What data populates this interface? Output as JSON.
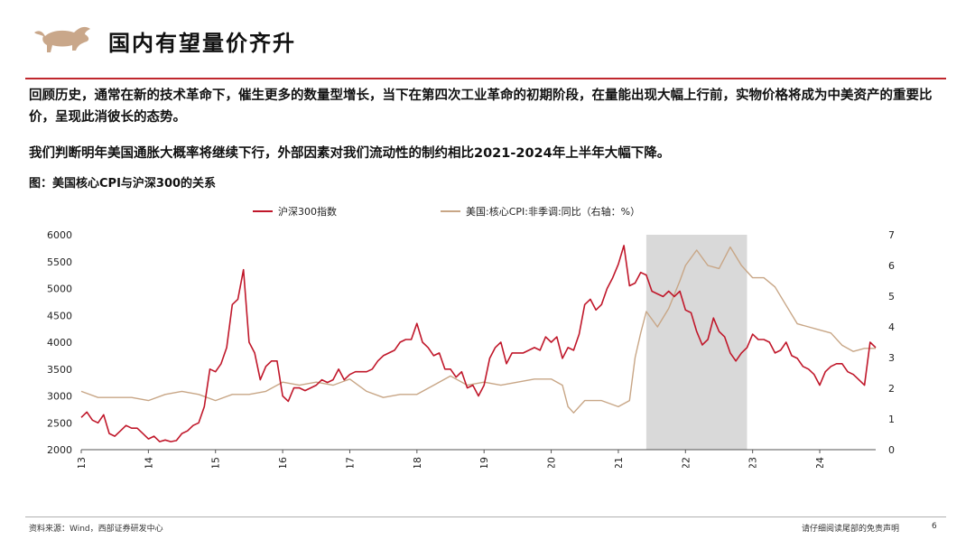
{
  "header": {
    "title": "国内有望量价齐升",
    "brand_color": "#c0272d",
    "logo_icon": "bull-logo-icon"
  },
  "body": {
    "paragraph1": "回顾历史，通常在新的技术革命下，催生更多的数量型增长，当下在第四次工业革命的初期阶段，在量能出现大幅上行前，实物价格将成为中美资产的重要比价，呈现此消彼长的态势。",
    "paragraph2": "我们判断明年美国通胀大概率将继续下行，外部因素对我们流动性的制约相比2021-2024年上半年大幅下降。",
    "figure_title": "图：美国核心CPI与沪深300的关系"
  },
  "chart_data": {
    "type": "line",
    "x_ticks": [
      "2013",
      "2014",
      "2015",
      "2016",
      "2017",
      "2018",
      "2019",
      "2020",
      "2021",
      "2022",
      "2023",
      "2024"
    ],
    "xlim": [
      "2013-01",
      "2024-11"
    ],
    "left_axis": {
      "ylim": [
        2000,
        6000
      ],
      "ticks": [
        "2000",
        "2500",
        "3000",
        "3500",
        "4000",
        "4500",
        "5000",
        "5500",
        "6000"
      ]
    },
    "right_axis": {
      "ylim": [
        0,
        7
      ],
      "ticks": [
        "0",
        "1",
        "2",
        "3",
        "4",
        "5",
        "6",
        "7"
      ]
    },
    "shaded_region": {
      "from": "2021-06",
      "to": "2022-12",
      "color": "#d9d9d9"
    },
    "legend_position": "top",
    "series": [
      {
        "name": "沪深300指数",
        "axis": "left",
        "color": "#c0172a",
        "points": [
          [
            "2013-01",
            2600
          ],
          [
            "2013-02",
            2700
          ],
          [
            "2013-03",
            2550
          ],
          [
            "2013-04",
            2500
          ],
          [
            "2013-05",
            2650
          ],
          [
            "2013-06",
            2300
          ],
          [
            "2013-07",
            2250
          ],
          [
            "2013-08",
            2350
          ],
          [
            "2013-09",
            2450
          ],
          [
            "2013-10",
            2400
          ],
          [
            "2013-11",
            2400
          ],
          [
            "2013-12",
            2300
          ],
          [
            "2014-01",
            2200
          ],
          [
            "2014-02",
            2250
          ],
          [
            "2014-03",
            2150
          ],
          [
            "2014-04",
            2180
          ],
          [
            "2014-05",
            2150
          ],
          [
            "2014-06",
            2170
          ],
          [
            "2014-07",
            2300
          ],
          [
            "2014-08",
            2350
          ],
          [
            "2014-09",
            2450
          ],
          [
            "2014-10",
            2500
          ],
          [
            "2014-11",
            2800
          ],
          [
            "2014-12",
            3500
          ],
          [
            "2015-01",
            3450
          ],
          [
            "2015-02",
            3600
          ],
          [
            "2015-03",
            3900
          ],
          [
            "2015-04",
            4700
          ],
          [
            "2015-05",
            4800
          ],
          [
            "2015-06",
            5350
          ],
          [
            "2015-07",
            4000
          ],
          [
            "2015-08",
            3800
          ],
          [
            "2015-09",
            3300
          ],
          [
            "2015-10",
            3550
          ],
          [
            "2015-11",
            3650
          ],
          [
            "2015-12",
            3650
          ],
          [
            "2016-01",
            3000
          ],
          [
            "2016-02",
            2900
          ],
          [
            "2016-03",
            3150
          ],
          [
            "2016-04",
            3150
          ],
          [
            "2016-05",
            3100
          ],
          [
            "2016-06",
            3150
          ],
          [
            "2016-07",
            3200
          ],
          [
            "2016-08",
            3300
          ],
          [
            "2016-09",
            3250
          ],
          [
            "2016-10",
            3300
          ],
          [
            "2016-11",
            3500
          ],
          [
            "2016-12",
            3300
          ],
          [
            "2017-01",
            3400
          ],
          [
            "2017-02",
            3450
          ],
          [
            "2017-03",
            3450
          ],
          [
            "2017-04",
            3450
          ],
          [
            "2017-05",
            3500
          ],
          [
            "2017-06",
            3650
          ],
          [
            "2017-07",
            3750
          ],
          [
            "2017-08",
            3800
          ],
          [
            "2017-09",
            3850
          ],
          [
            "2017-10",
            4000
          ],
          [
            "2017-11",
            4050
          ],
          [
            "2017-12",
            4050
          ],
          [
            "2018-01",
            4350
          ],
          [
            "2018-02",
            4000
          ],
          [
            "2018-03",
            3900
          ],
          [
            "2018-04",
            3750
          ],
          [
            "2018-05",
            3800
          ],
          [
            "2018-06",
            3500
          ],
          [
            "2018-07",
            3500
          ],
          [
            "2018-08",
            3350
          ],
          [
            "2018-09",
            3450
          ],
          [
            "2018-10",
            3150
          ],
          [
            "2018-11",
            3200
          ],
          [
            "2018-12",
            3000
          ],
          [
            "2019-01",
            3200
          ],
          [
            "2019-02",
            3700
          ],
          [
            "2019-03",
            3900
          ],
          [
            "2019-04",
            4000
          ],
          [
            "2019-05",
            3600
          ],
          [
            "2019-06",
            3800
          ],
          [
            "2019-07",
            3800
          ],
          [
            "2019-08",
            3800
          ],
          [
            "2019-09",
            3850
          ],
          [
            "2019-10",
            3900
          ],
          [
            "2019-11",
            3850
          ],
          [
            "2019-12",
            4100
          ],
          [
            "2020-01",
            4000
          ],
          [
            "2020-02",
            4100
          ],
          [
            "2020-03",
            3700
          ],
          [
            "2020-04",
            3900
          ],
          [
            "2020-05",
            3850
          ],
          [
            "2020-06",
            4150
          ],
          [
            "2020-07",
            4700
          ],
          [
            "2020-08",
            4800
          ],
          [
            "2020-09",
            4600
          ],
          [
            "2020-10",
            4700
          ],
          [
            "2020-11",
            5000
          ],
          [
            "2020-12",
            5200
          ],
          [
            "2021-01",
            5450
          ],
          [
            "2021-02",
            5800
          ],
          [
            "2021-03",
            5050
          ],
          [
            "2021-04",
            5100
          ],
          [
            "2021-05",
            5300
          ],
          [
            "2021-06",
            5250
          ],
          [
            "2021-07",
            4950
          ],
          [
            "2021-08",
            4900
          ],
          [
            "2021-09",
            4850
          ],
          [
            "2021-10",
            4950
          ],
          [
            "2021-11",
            4850
          ],
          [
            "2021-12",
            4950
          ],
          [
            "2022-01",
            4600
          ],
          [
            "2022-02",
            4550
          ],
          [
            "2022-03",
            4200
          ],
          [
            "2022-04",
            3950
          ],
          [
            "2022-05",
            4050
          ],
          [
            "2022-06",
            4450
          ],
          [
            "2022-07",
            4200
          ],
          [
            "2022-08",
            4100
          ],
          [
            "2022-09",
            3800
          ],
          [
            "2022-10",
            3650
          ],
          [
            "2022-11",
            3800
          ],
          [
            "2022-12",
            3900
          ],
          [
            "2023-01",
            4150
          ],
          [
            "2023-02",
            4050
          ],
          [
            "2023-03",
            4050
          ],
          [
            "2023-04",
            4000
          ],
          [
            "2023-05",
            3800
          ],
          [
            "2023-06",
            3850
          ],
          [
            "2023-07",
            4000
          ],
          [
            "2023-08",
            3750
          ],
          [
            "2023-09",
            3700
          ],
          [
            "2023-10",
            3550
          ],
          [
            "2023-11",
            3500
          ],
          [
            "2023-12",
            3400
          ],
          [
            "2024-01",
            3200
          ],
          [
            "2024-02",
            3450
          ],
          [
            "2024-03",
            3550
          ],
          [
            "2024-04",
            3600
          ],
          [
            "2024-05",
            3600
          ],
          [
            "2024-06",
            3450
          ],
          [
            "2024-07",
            3400
          ],
          [
            "2024-08",
            3300
          ],
          [
            "2024-09",
            3200
          ],
          [
            "2024-10",
            4000
          ],
          [
            "2024-11",
            3900
          ]
        ]
      },
      {
        "name": "美国:核心CPI:非季调:同比（右轴：%）",
        "axis": "right",
        "color": "#c8a686",
        "points": [
          [
            "2013-01",
            1.9
          ],
          [
            "2013-04",
            1.7
          ],
          [
            "2013-07",
            1.7
          ],
          [
            "2013-10",
            1.7
          ],
          [
            "2014-01",
            1.6
          ],
          [
            "2014-04",
            1.8
          ],
          [
            "2014-07",
            1.9
          ],
          [
            "2014-10",
            1.8
          ],
          [
            "2015-01",
            1.6
          ],
          [
            "2015-04",
            1.8
          ],
          [
            "2015-07",
            1.8
          ],
          [
            "2015-10",
            1.9
          ],
          [
            "2016-01",
            2.2
          ],
          [
            "2016-04",
            2.1
          ],
          [
            "2016-07",
            2.2
          ],
          [
            "2016-10",
            2.1
          ],
          [
            "2017-01",
            2.3
          ],
          [
            "2017-04",
            1.9
          ],
          [
            "2017-07",
            1.7
          ],
          [
            "2017-10",
            1.8
          ],
          [
            "2018-01",
            1.8
          ],
          [
            "2018-04",
            2.1
          ],
          [
            "2018-07",
            2.4
          ],
          [
            "2018-10",
            2.1
          ],
          [
            "2019-01",
            2.2
          ],
          [
            "2019-04",
            2.1
          ],
          [
            "2019-07",
            2.2
          ],
          [
            "2019-10",
            2.3
          ],
          [
            "2020-01",
            2.3
          ],
          [
            "2020-03",
            2.1
          ],
          [
            "2020-04",
            1.4
          ],
          [
            "2020-05",
            1.2
          ],
          [
            "2020-07",
            1.6
          ],
          [
            "2020-10",
            1.6
          ],
          [
            "2021-01",
            1.4
          ],
          [
            "2021-03",
            1.6
          ],
          [
            "2021-04",
            3.0
          ],
          [
            "2021-05",
            3.8
          ],
          [
            "2021-06",
            4.5
          ],
          [
            "2021-08",
            4.0
          ],
          [
            "2021-10",
            4.6
          ],
          [
            "2021-12",
            5.5
          ],
          [
            "2022-01",
            6.0
          ],
          [
            "2022-03",
            6.5
          ],
          [
            "2022-05",
            6.0
          ],
          [
            "2022-07",
            5.9
          ],
          [
            "2022-09",
            6.6
          ],
          [
            "2022-11",
            6.0
          ],
          [
            "2023-01",
            5.6
          ],
          [
            "2023-03",
            5.6
          ],
          [
            "2023-05",
            5.3
          ],
          [
            "2023-07",
            4.7
          ],
          [
            "2023-09",
            4.1
          ],
          [
            "2023-11",
            4.0
          ],
          [
            "2024-01",
            3.9
          ],
          [
            "2024-03",
            3.8
          ],
          [
            "2024-05",
            3.4
          ],
          [
            "2024-07",
            3.2
          ],
          [
            "2024-09",
            3.3
          ],
          [
            "2024-11",
            3.3
          ]
        ]
      }
    ]
  },
  "footer": {
    "source": "资料来源：Wind，西部证券研发中心",
    "disclaimer": "请仔细阅读尾部的免责声明",
    "page_number": "6"
  }
}
